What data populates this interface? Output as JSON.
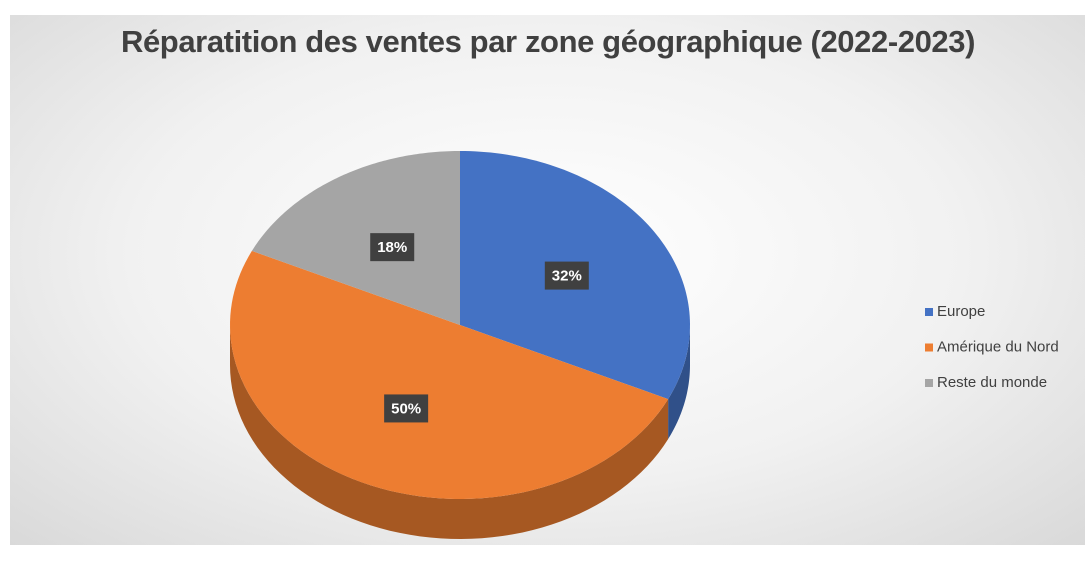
{
  "chart_data": {
    "type": "pie",
    "title": "Réparatition des ventes par zone géographique (2022-2023)",
    "categories": [
      "Europe",
      "Amérique du Nord",
      "Reste du monde"
    ],
    "values": [
      32,
      50,
      18
    ],
    "value_labels": [
      "32%",
      "50%",
      "18%"
    ],
    "colors": [
      "#4472c4",
      "#ed7d31",
      "#a5a5a5"
    ],
    "legend": "right"
  }
}
